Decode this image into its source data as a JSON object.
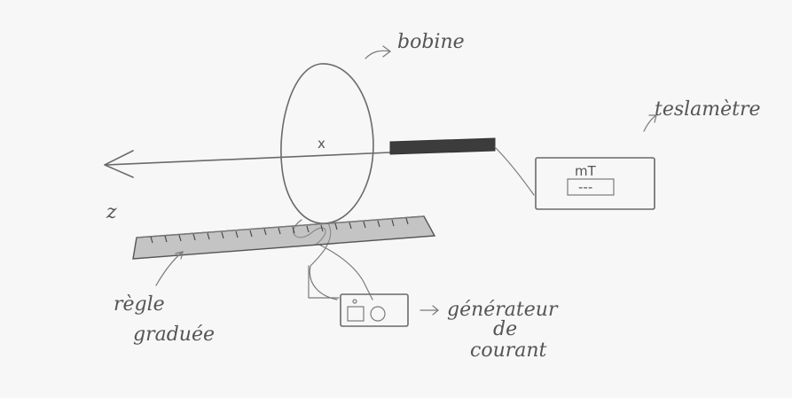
{
  "labels": {
    "coil": "bobine",
    "teslameter": "teslamètre",
    "ruler_line1": "règle",
    "ruler_line2": "graduée",
    "generator_line1": "générateur",
    "generator_line2": "de",
    "generator_line3": "courant",
    "axis_z": "z",
    "axis_x_mark": "x",
    "meter_unit": "mT",
    "meter_display": "---"
  },
  "style": {
    "paper": "#f7f7f7",
    "pencil": "#6a6a6a",
    "shading": "#3c3c3c"
  }
}
